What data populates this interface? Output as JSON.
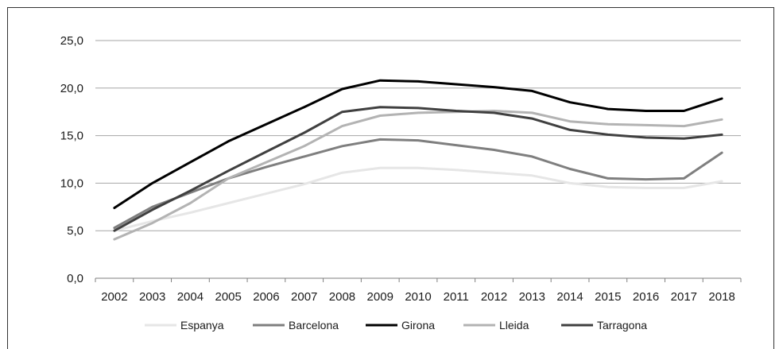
{
  "chart_data": {
    "type": "line",
    "title": "",
    "xlabel": "",
    "ylabel": "",
    "x": [
      "2002",
      "2003",
      "2004",
      "2005",
      "2006",
      "2007",
      "2008",
      "2009",
      "2010",
      "2011",
      "2012",
      "2013",
      "2014",
      "2015",
      "2016",
      "2017",
      "2018"
    ],
    "ylim": [
      0,
      25
    ],
    "y_ticks": [
      "0,0",
      "5,0",
      "10,0",
      "15,0",
      "20,0",
      "25,0"
    ],
    "grid": true,
    "legend_position": "bottom",
    "series": [
      {
        "name": "Espanya",
        "color": "#e6e6e6",
        "values": [
          5.0,
          6.0,
          6.9,
          7.9,
          8.9,
          9.9,
          11.1,
          11.6,
          11.6,
          11.4,
          11.1,
          10.8,
          10.0,
          9.6,
          9.5,
          9.5,
          10.2
        ]
      },
      {
        "name": "Barcelona",
        "color": "#7f7f7f",
        "values": [
          5.3,
          7.5,
          9.0,
          10.5,
          11.7,
          12.8,
          13.9,
          14.6,
          14.5,
          14.0,
          13.5,
          12.8,
          11.5,
          10.5,
          10.4,
          10.5,
          13.2
        ]
      },
      {
        "name": "Girona",
        "color": "#000000",
        "values": [
          7.4,
          10.0,
          12.2,
          14.4,
          16.2,
          18.0,
          19.9,
          20.8,
          20.7,
          20.4,
          20.1,
          19.7,
          18.5,
          17.8,
          17.6,
          17.6,
          18.9
        ]
      },
      {
        "name": "Lleida",
        "color": "#b3b3b3",
        "values": [
          4.1,
          5.8,
          7.9,
          10.5,
          12.2,
          13.9,
          16.0,
          17.1,
          17.4,
          17.5,
          17.6,
          17.4,
          16.5,
          16.2,
          16.1,
          16.0,
          16.7
        ]
      },
      {
        "name": "Tarragona",
        "color": "#404040",
        "values": [
          5.0,
          7.2,
          9.2,
          11.3,
          13.3,
          15.3,
          17.5,
          18.0,
          17.9,
          17.6,
          17.4,
          16.8,
          15.6,
          15.1,
          14.8,
          14.7,
          15.1
        ]
      }
    ]
  }
}
